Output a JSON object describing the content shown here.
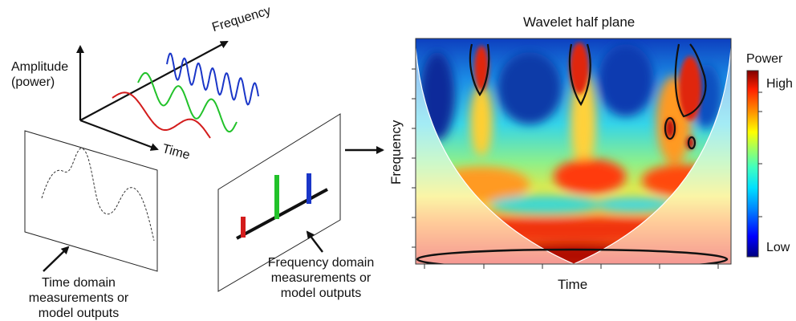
{
  "left_diagram": {
    "amplitude_label_line1": "Amplitude",
    "amplitude_label_line2": "(power)",
    "frequency_axis_label": "Frequency",
    "time_axis_label": "Time",
    "wave_colors": [
      "#d31c1c",
      "#22c22a",
      "#1a36c8"
    ]
  },
  "time_panel": {
    "caption_line1": "Time domain",
    "caption_line2": "measurements or",
    "caption_line3": "model outputs"
  },
  "frequency_panel": {
    "caption_line1": "Frequency domain",
    "caption_line2": "measurements or",
    "caption_line3": "model outputs",
    "bar_colors": [
      "#d31c1c",
      "#22c22a",
      "#1a36c8"
    ]
  },
  "wavelet_plot": {
    "title": "Wavelet half plane",
    "xlabel": "Time",
    "ylabel": "Frequency",
    "colorbar": {
      "title": "Power",
      "high_label": "High",
      "low_label": "Low",
      "colors": [
        "#000080",
        "#0000ff",
        "#0080ff",
        "#00e0ff",
        "#40ffc0",
        "#a0ff60",
        "#ffff00",
        "#ff9000",
        "#ff2000",
        "#800000"
      ]
    }
  }
}
